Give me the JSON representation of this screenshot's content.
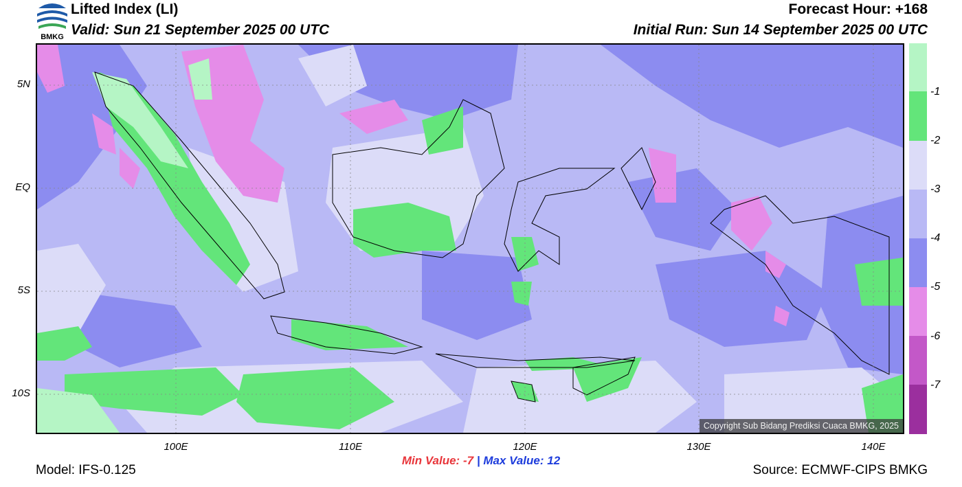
{
  "header": {
    "title": "Lifted Index (LI)",
    "valid": "Valid: Sun 21 September 2025 00 UTC",
    "forecast_hour": "Forecast Hour: +168",
    "initial_run": "Initial Run: Sun 14 September 2025 00 UTC"
  },
  "logo": {
    "text": "BMKG",
    "colors": {
      "blue": "#1e5aa8",
      "green": "#3aa655"
    }
  },
  "map": {
    "lat_labels": [
      "5N",
      "EQ",
      "5S",
      "10S"
    ],
    "lon_labels": [
      "100E",
      "110E",
      "120E",
      "130E",
      "140E"
    ],
    "copyright": "Copyright Sub Bidang Prediksi Cuaca BMKG, 2025",
    "colors": {
      "background": "#b9b9f5",
      "deep_purple": "#8c8cf0",
      "light": "#dcdcf8",
      "green": "#63e57a",
      "pale_green": "#b5f5c5",
      "pink": "#e58ce8"
    }
  },
  "legend": {
    "labels": [
      "-1",
      "-2",
      "-3",
      "-4",
      "-5",
      "-6",
      "-7"
    ],
    "colors": [
      "#b5f5c5",
      "#63e57a",
      "#dcdcf8",
      "#b9b9f5",
      "#8c8cf0",
      "#e58ce8",
      "#c358c8",
      "#9b2f9e"
    ]
  },
  "stats": {
    "min_label": "Min Value:",
    "min_value": "-7",
    "separator": "|",
    "max_label": "Max Value:",
    "max_value": "12"
  },
  "footer": {
    "model": "Model: IFS-0.125",
    "source": "Source: ECMWF-CIPS BMKG"
  }
}
